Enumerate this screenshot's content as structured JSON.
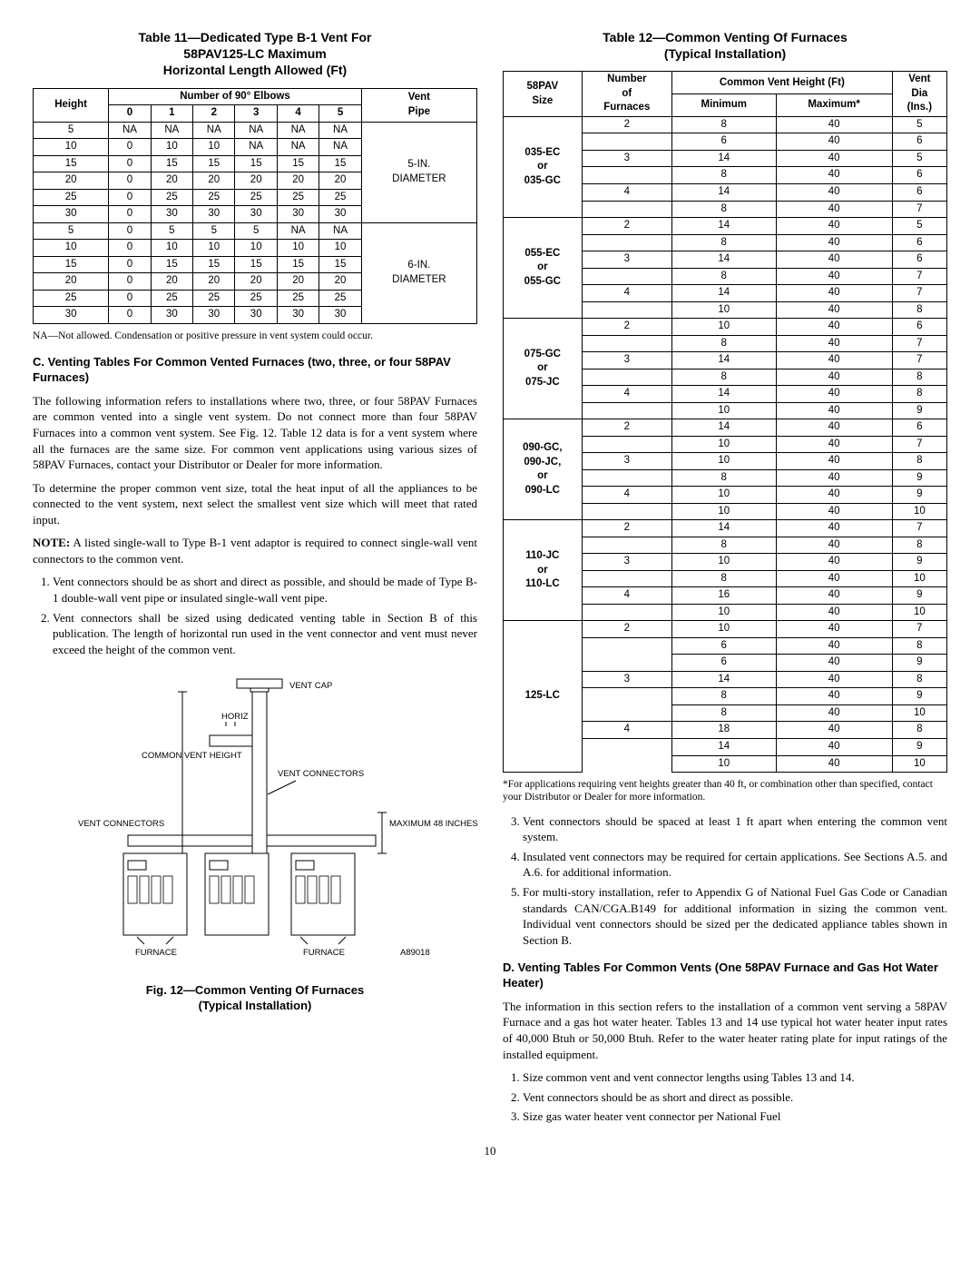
{
  "left": {
    "table11": {
      "title": "Table 11—Dedicated Type B-1 Vent For\n58PAV125-LC Maximum\nHorizontal Length Allowed (Ft)",
      "head_height": "Height",
      "head_elbows": "Number of 90° Elbows",
      "head_vent": "Vent\nPipe",
      "cols": [
        "0",
        "1",
        "2",
        "3",
        "4",
        "5"
      ],
      "groups": [
        {
          "pipe": "5-IN.\nDIAMETER",
          "rows": [
            [
              "5",
              "NA",
              "NA",
              "NA",
              "NA",
              "NA",
              "NA"
            ],
            [
              "10",
              "0",
              "10",
              "10",
              "NA",
              "NA",
              "NA"
            ],
            [
              "15",
              "0",
              "15",
              "15",
              "15",
              "15",
              "15"
            ],
            [
              "20",
              "0",
              "20",
              "20",
              "20",
              "20",
              "20"
            ],
            [
              "25",
              "0",
              "25",
              "25",
              "25",
              "25",
              "25"
            ],
            [
              "30",
              "0",
              "30",
              "30",
              "30",
              "30",
              "30"
            ]
          ]
        },
        {
          "pipe": "6-IN.\nDIAMETER",
          "rows": [
            [
              "5",
              "0",
              "5",
              "5",
              "5",
              "NA",
              "NA"
            ],
            [
              "10",
              "0",
              "10",
              "10",
              "10",
              "10",
              "10"
            ],
            [
              "15",
              "0",
              "15",
              "15",
              "15",
              "15",
              "15"
            ],
            [
              "20",
              "0",
              "20",
              "20",
              "20",
              "20",
              "20"
            ],
            [
              "25",
              "0",
              "25",
              "25",
              "25",
              "25",
              "25"
            ],
            [
              "30",
              "0",
              "30",
              "30",
              "30",
              "30",
              "30"
            ]
          ]
        }
      ],
      "footnote": "NA—Not allowed. Condensation or positive pressure in vent system could occur."
    },
    "sectionC": {
      "heading": "C. Venting Tables For Common Vented Furnaces (two, three, or four 58PAV Furnaces)",
      "p1": "The following information refers to installations where two, three, or four 58PAV Furnaces are common vented into a single vent system. Do not connect more than four 58PAV Furnaces into a common vent system. See Fig. 12. Table 12 data is for a vent system where all the furnaces are the same size. For common vent applications using various sizes of 58PAV Furnaces, contact your Distributor or Dealer for more information.",
      "p2": "To determine the proper common vent size, total the heat input of all the appliances to be connected to the vent system, next select the smallest vent size which will meet that rated input.",
      "note_label": "NOTE:",
      "note_body": " A listed single-wall to Type B-1 vent adaptor is required to connect single-wall vent connectors to the common vent.",
      "list": [
        "Vent connectors should be as short and direct as possible, and should be made of Type B-1 double-wall vent pipe or insulated single-wall vent pipe.",
        "Vent connectors shall be sized using dedicated venting table in Section B of this publication. The length of horizontal run used in the vent connector and vent must never exceed the height of the common vent."
      ]
    },
    "figure12": {
      "labels": {
        "vent_cap": "VENT\nCAP",
        "horiz": "HORIZ",
        "common_vent_height": "COMMON\nVENT\nHEIGHT",
        "vent_connectors": "VENT CONNECTORS",
        "maximum": "MAXIMUM\n48 INCHES",
        "furnace": "FURNACE",
        "code": "A89018"
      },
      "caption": "Fig. 12—Common Venting Of Furnaces\n(Typical Installation)"
    }
  },
  "right": {
    "table12": {
      "title": "Table 12—Common Venting Of Furnaces\n(Typical Installation)",
      "head_size": "58PAV\nSize",
      "head_num": "Number\nof\nFurnaces",
      "head_cvh": "Common Vent Height (Ft)",
      "head_min": "Minimum",
      "head_max": "Maximum*",
      "head_dia": "Vent\nDia\n(Ins.)",
      "groups": [
        {
          "size": "035-EC\nor\n035-GC",
          "rows": [
            [
              "2",
              "8",
              "40",
              "5"
            ],
            [
              "",
              "6",
              "40",
              "6"
            ],
            [
              "3",
              "14",
              "40",
              "5"
            ],
            [
              "",
              "8",
              "40",
              "6"
            ],
            [
              "4",
              "14",
              "40",
              "6"
            ],
            [
              "",
              "8",
              "40",
              "7"
            ]
          ]
        },
        {
          "size": "055-EC\nor\n055-GC",
          "rows": [
            [
              "2",
              "14",
              "40",
              "5"
            ],
            [
              "",
              "8",
              "40",
              "6"
            ],
            [
              "3",
              "14",
              "40",
              "6"
            ],
            [
              "",
              "8",
              "40",
              "7"
            ],
            [
              "4",
              "14",
              "40",
              "7"
            ],
            [
              "",
              "10",
              "40",
              "8"
            ]
          ]
        },
        {
          "size": "075-GC\nor\n075-JC",
          "rows": [
            [
              "2",
              "10",
              "40",
              "6"
            ],
            [
              "",
              "8",
              "40",
              "7"
            ],
            [
              "3",
              "14",
              "40",
              "7"
            ],
            [
              "",
              "8",
              "40",
              "8"
            ],
            [
              "4",
              "14",
              "40",
              "8"
            ],
            [
              "",
              "10",
              "40",
              "9"
            ]
          ]
        },
        {
          "size": "090-GC,\n090-JC,\nor\n090-LC",
          "rows": [
            [
              "2",
              "14",
              "40",
              "6"
            ],
            [
              "",
              "10",
              "40",
              "7"
            ],
            [
              "3",
              "10",
              "40",
              "8"
            ],
            [
              "",
              "8",
              "40",
              "9"
            ],
            [
              "4",
              "10",
              "40",
              "9"
            ],
            [
              "",
              "10",
              "40",
              "10"
            ]
          ]
        },
        {
          "size": "110-JC\nor\n110-LC",
          "rows": [
            [
              "2",
              "14",
              "40",
              "7"
            ],
            [
              "",
              "8",
              "40",
              "8"
            ],
            [
              "3",
              "10",
              "40",
              "9"
            ],
            [
              "",
              "8",
              "40",
              "10"
            ],
            [
              "4",
              "16",
              "40",
              "9"
            ],
            [
              "",
              "10",
              "40",
              "10"
            ]
          ]
        },
        {
          "size": "125-LC",
          "rows": [
            [
              "2",
              "10",
              "40",
              "7"
            ],
            [
              "",
              "6",
              "40",
              "8"
            ],
            [
              "",
              "6",
              "40",
              "9"
            ],
            [
              "3",
              "14",
              "40",
              "8"
            ],
            [
              "",
              "8",
              "40",
              "9"
            ],
            [
              "",
              "8",
              "40",
              "10"
            ],
            [
              "4",
              "18",
              "40",
              "8"
            ],
            [
              "",
              "14",
              "40",
              "9"
            ],
            [
              "",
              "10",
              "40",
              "10"
            ]
          ]
        }
      ],
      "footnote": "*For applications requiring vent heights greater than 40 ft, or combination other than specified, contact your Distributor or Dealer for more information."
    },
    "list_cont": [
      "Vent connectors should be spaced at least 1 ft apart when entering the common vent system.",
      "Insulated vent connectors may be required for certain applications. See Sections A.5. and A.6. for additional information.",
      "For multi-story installation, refer to Appendix G of National Fuel Gas Code or Canadian standards CAN/CGA.B149 for additional information in sizing the common vent. Individual vent connectors should be sized per the dedicated appliance tables shown in Section B."
    ],
    "sectionD": {
      "heading": "D. Venting Tables For Common Vents (One 58PAV Furnace and Gas Hot Water Heater)",
      "p1": "The information in this section refers to the installation of a common vent serving a 58PAV Furnace and a gas hot water heater. Tables 13 and 14 use typical hot water heater input rates of 40,000 Btuh or 50,000 Btuh. Refer to the water heater rating plate for input ratings of the installed equipment.",
      "list": [
        "Size common vent and vent connector lengths using Tables 13 and 14.",
        "Vent connectors should be as short and direct as possible.",
        "Size gas water heater vent connector per National Fuel"
      ]
    }
  },
  "pagenum": "10"
}
